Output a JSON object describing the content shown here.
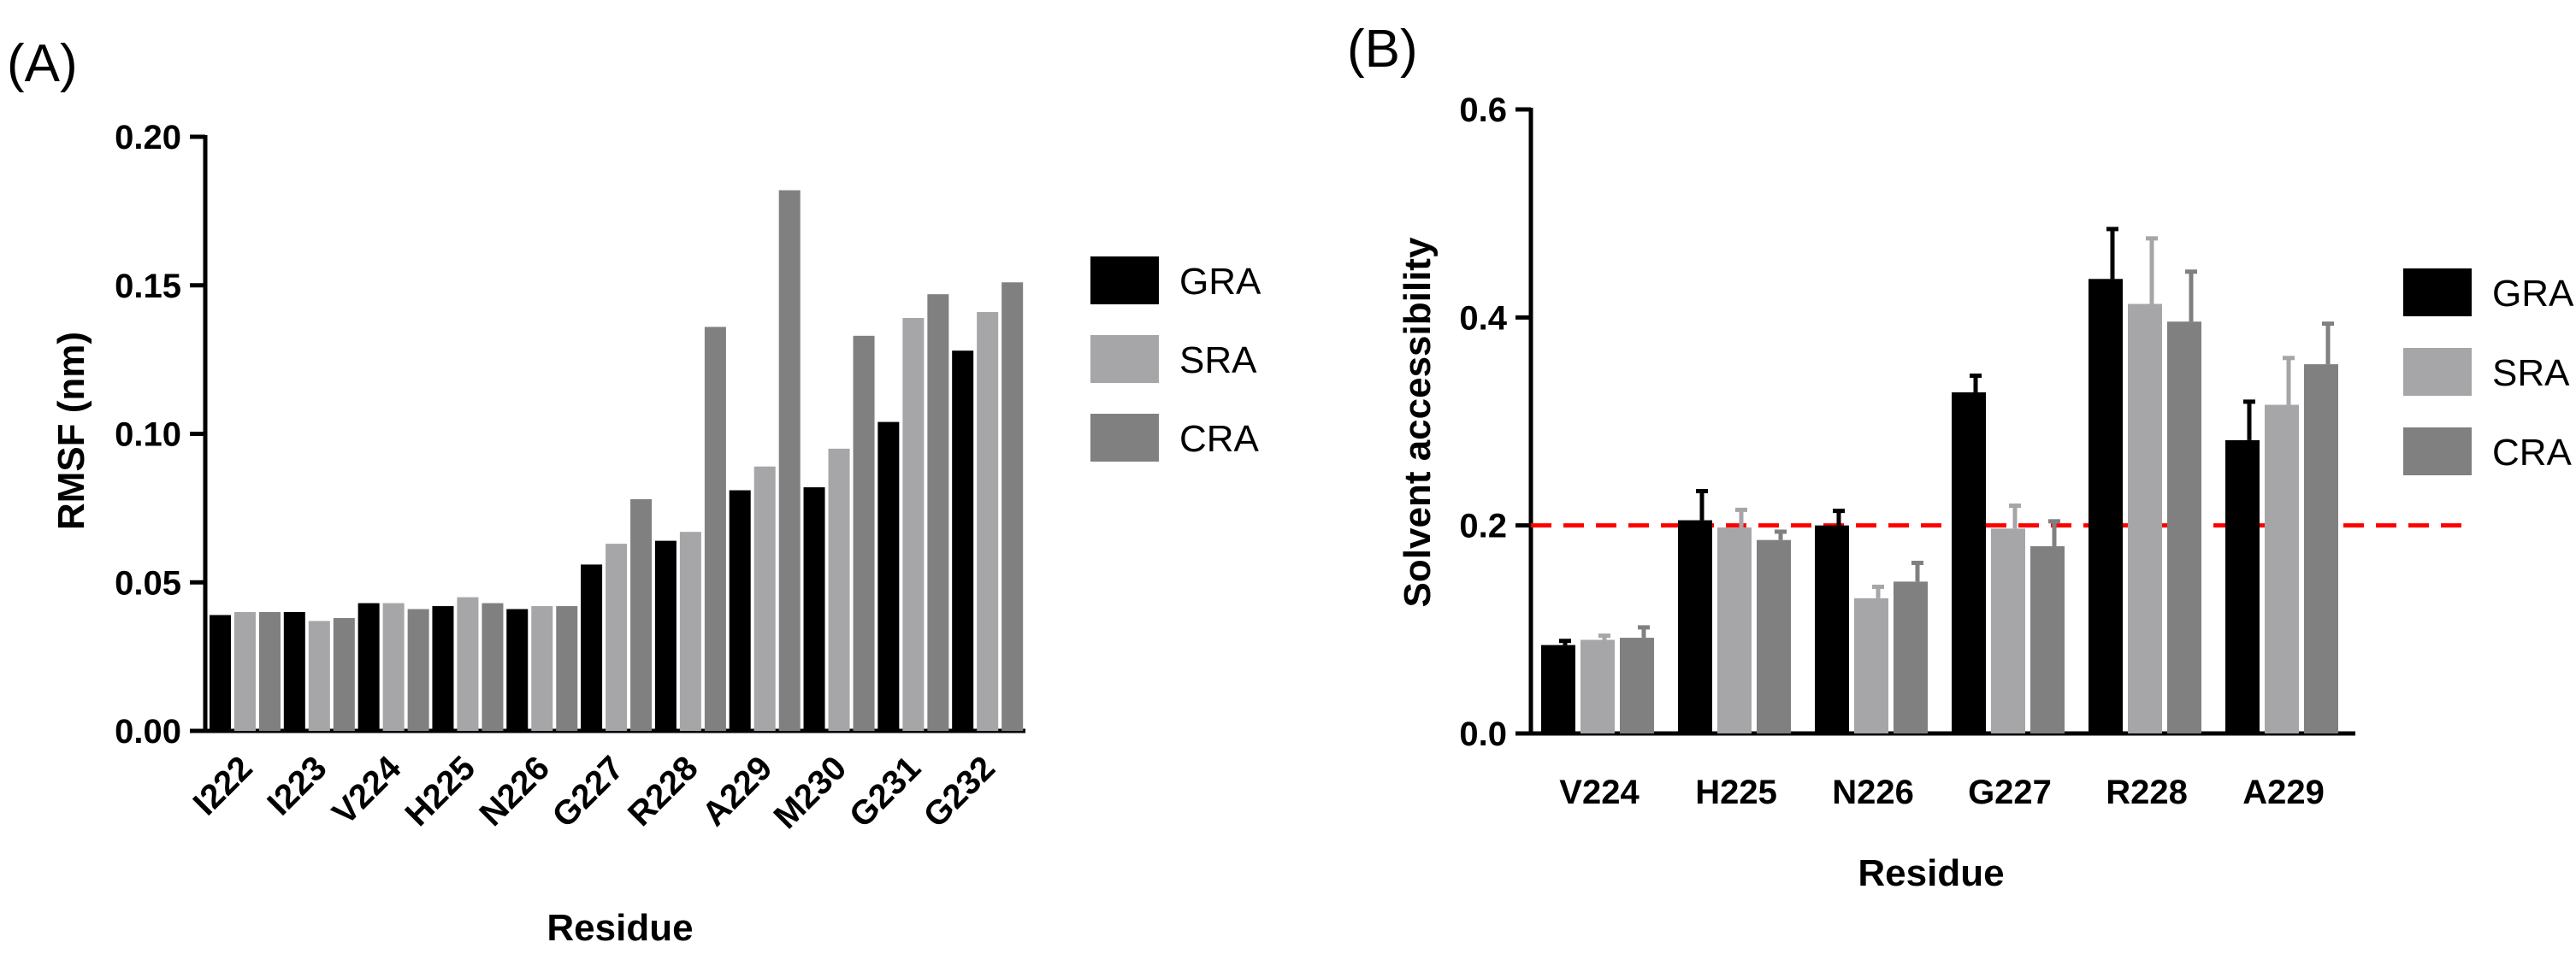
{
  "colors": {
    "GRA": "#000000",
    "SRA": "#a6a6a8",
    "CRA": "#808080",
    "threshold": "#ff0000"
  },
  "chart_data": [
    {
      "panel": "(A)",
      "type": "bar",
      "xlabel": "Residue",
      "ylabel": "RMSF (nm)",
      "ylim": [
        0,
        0.2
      ],
      "yticks": [
        "0.00",
        "0.05",
        "0.10",
        "0.15",
        "0.20"
      ],
      "yticks_values": [
        0,
        0.05,
        0.1,
        0.15,
        0.2
      ],
      "legend_position": "right",
      "categories": [
        "I222",
        "I223",
        "V224",
        "H225",
        "N226",
        "G227",
        "R228",
        "A229",
        "M230",
        "G231",
        "G232"
      ],
      "series": [
        {
          "name": "GRA",
          "values": [
            0.039,
            0.04,
            0.043,
            0.042,
            0.041,
            0.056,
            0.064,
            0.081,
            0.082,
            0.104,
            0.128
          ]
        },
        {
          "name": "SRA",
          "values": [
            0.04,
            0.037,
            0.043,
            0.045,
            0.042,
            0.063,
            0.067,
            0.089,
            0.095,
            0.139,
            0.141
          ]
        },
        {
          "name": "CRA",
          "values": [
            0.04,
            0.038,
            0.041,
            0.043,
            0.042,
            0.078,
            0.136,
            0.182,
            0.133,
            0.147,
            0.151
          ]
        }
      ]
    },
    {
      "panel": "(B)",
      "type": "bar",
      "xlabel": "Residue",
      "ylabel": "Solvent accessibility",
      "ylim": [
        0,
        0.6
      ],
      "yticks": [
        "0.0",
        "0.2",
        "0.4",
        "0.6"
      ],
      "yticks_values": [
        0,
        0.2,
        0.4,
        0.6
      ],
      "threshold": 0.2,
      "legend_position": "right",
      "categories": [
        "V224",
        "H225",
        "N226",
        "G227",
        "R228",
        "A229"
      ],
      "series": [
        {
          "name": "GRA",
          "values": [
            0.085,
            0.205,
            0.2,
            0.328,
            0.437,
            0.282
          ],
          "errors": [
            0.004,
            0.028,
            0.014,
            0.016,
            0.048,
            0.037
          ]
        },
        {
          "name": "SRA",
          "values": [
            0.09,
            0.198,
            0.13,
            0.197,
            0.413,
            0.316
          ],
          "errors": [
            0.004,
            0.017,
            0.011,
            0.022,
            0.063,
            0.045
          ]
        },
        {
          "name": "CRA",
          "values": [
            0.092,
            0.186,
            0.146,
            0.18,
            0.396,
            0.355
          ],
          "errors": [
            0.01,
            0.008,
            0.018,
            0.024,
            0.048,
            0.039
          ]
        }
      ]
    }
  ]
}
